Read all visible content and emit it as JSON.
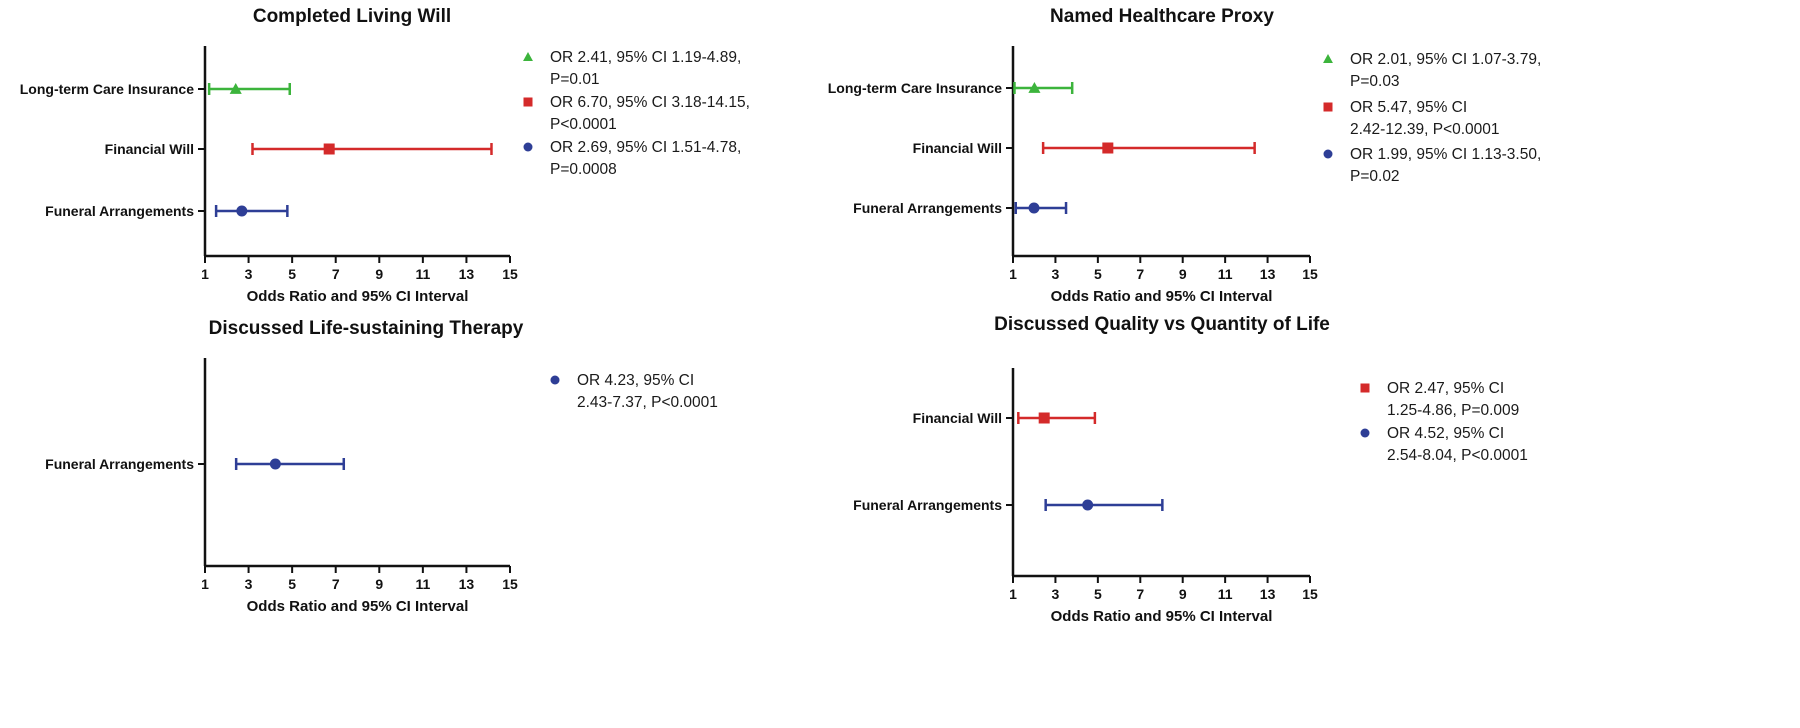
{
  "colors": {
    "green": "#3cb43c",
    "red": "#d42a2a",
    "blue": "#2e3e96",
    "axis": "#111111"
  },
  "chart_data": [
    {
      "type": "forest",
      "title": "Completed Living Will",
      "xlabel": "Odds Ratio and 95% CI Interval",
      "xlim": [
        1,
        15
      ],
      "xticks": [
        1,
        3,
        5,
        7,
        9,
        11,
        13,
        15
      ],
      "rows": [
        {
          "label": "Long-term Care Insurance",
          "or": 2.41,
          "ci_low": 1.19,
          "ci_high": 4.89,
          "marker": "triangle",
          "color": "#3cb43c",
          "legend": [
            "OR 2.41, 95% CI 1.19-4.89,",
            "P=0.01"
          ]
        },
        {
          "label": "Financial Will",
          "or": 6.7,
          "ci_low": 3.18,
          "ci_high": 14.15,
          "marker": "square",
          "color": "#d42a2a",
          "legend": [
            "OR 6.70, 95% CI 3.18-14.15,",
            "P<0.0001"
          ]
        },
        {
          "label": "Funeral Arrangements",
          "or": 2.69,
          "ci_low": 1.51,
          "ci_high": 4.78,
          "marker": "circle",
          "color": "#2e3e96",
          "legend": [
            "OR 2.69, 95% CI 1.51-4.78,",
            "P=0.0008"
          ]
        }
      ]
    },
    {
      "type": "forest",
      "title": "Named Healthcare Proxy",
      "xlabel": "Odds Ratio and 95% CI Interval",
      "xlim": [
        1,
        15
      ],
      "xticks": [
        1,
        3,
        5,
        7,
        9,
        11,
        13,
        15
      ],
      "rows": [
        {
          "label": "Long-term Care Insurance",
          "or": 2.01,
          "ci_low": 1.07,
          "ci_high": 3.79,
          "marker": "triangle",
          "color": "#3cb43c",
          "legend": [
            "OR 2.01, 95% CI 1.07-3.79,",
            "P=0.03"
          ]
        },
        {
          "label": "Financial Will",
          "or": 5.47,
          "ci_low": 2.42,
          "ci_high": 12.39,
          "marker": "square",
          "color": "#d42a2a",
          "legend": [
            "OR 5.47, 95% CI",
            "2.42-12.39, P<0.0001"
          ]
        },
        {
          "label": "Funeral Arrangements",
          "or": 1.99,
          "ci_low": 1.13,
          "ci_high": 3.5,
          "marker": "circle",
          "color": "#2e3e96",
          "legend": [
            "OR 1.99, 95% CI 1.13-3.50,",
            "P=0.02"
          ]
        }
      ]
    },
    {
      "type": "forest",
      "title": "Discussed Life-sustaining Therapy",
      "xlabel": "Odds Ratio and 95% CI Interval",
      "xlim": [
        1,
        15
      ],
      "xticks": [
        1,
        3,
        5,
        7,
        9,
        11,
        13,
        15
      ],
      "rows": [
        {
          "label": "Funeral Arrangements",
          "or": 4.23,
          "ci_low": 2.43,
          "ci_high": 7.37,
          "marker": "circle",
          "color": "#2e3e96",
          "legend": [
            "OR 4.23, 95% CI",
            "2.43-7.37, P<0.0001"
          ]
        }
      ]
    },
    {
      "type": "forest",
      "title": "Discussed Quality vs Quantity of Life",
      "xlabel": "Odds Ratio and 95% CI Interval",
      "xlim": [
        1,
        15
      ],
      "xticks": [
        1,
        3,
        5,
        7,
        9,
        11,
        13,
        15
      ],
      "rows": [
        {
          "label": "Financial Will",
          "or": 2.47,
          "ci_low": 1.25,
          "ci_high": 4.86,
          "marker": "square",
          "color": "#d42a2a",
          "legend": [
            "OR 2.47, 95% CI",
            "1.25-4.86, P=0.009"
          ]
        },
        {
          "label": "Funeral Arrangements",
          "or": 4.52,
          "ci_low": 2.54,
          "ci_high": 8.04,
          "marker": "circle",
          "color": "#2e3e96",
          "legend": [
            "OR 4.52, 95% CI",
            "2.54-8.04, P<0.0001"
          ]
        }
      ]
    }
  ]
}
